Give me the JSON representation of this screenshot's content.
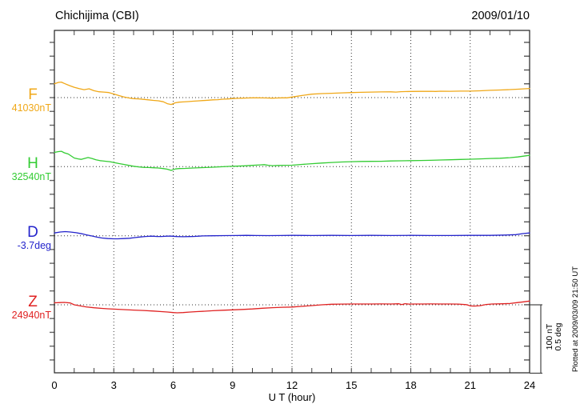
{
  "header": {
    "station_title": "Chichijima (CBI)",
    "date": "2009/01/10"
  },
  "x_axis": {
    "label": "U T (hour)",
    "min": 0,
    "max": 24,
    "minor_step_hours": 1,
    "grid_hours": [
      3,
      6,
      9,
      12,
      15,
      18,
      21
    ],
    "tick_labels": [
      "0",
      "3",
      "6",
      "9",
      "12",
      "15",
      "18",
      "21",
      "24"
    ]
  },
  "scale_bar": {
    "line1": "100 nT",
    "line2": "0.5 deg"
  },
  "footer_note": "Plotted at 2009/03/09 21:50 UT",
  "chart_data": {
    "type": "line",
    "title": "Chichijima (CBI) daily magnetogram",
    "subtitle": "2009/01/10",
    "xlabel": "U T (hour)",
    "xlim": [
      0,
      24
    ],
    "grid": "dotted baselines per trace, dotted verticals every 3 hours",
    "legend_position": "left margin, one label per trace",
    "scale": {
      "nT_per_division": 100,
      "deg_per_division": 0.5,
      "minor_ticks_per_division": 5
    },
    "series": [
      {
        "name": "F",
        "baseline_label": "41030nT",
        "baseline_value": 41030,
        "unit": "nT",
        "color": "#f0a818",
        "points": [
          [
            0,
            20
          ],
          [
            0.2,
            22
          ],
          [
            0.35,
            22.5
          ],
          [
            0.5,
            20.5
          ],
          [
            0.75,
            17.5
          ],
          [
            1,
            15
          ],
          [
            1.25,
            13
          ],
          [
            1.5,
            11.5
          ],
          [
            1.75,
            12.7
          ],
          [
            2,
            10
          ],
          [
            2.25,
            8.5
          ],
          [
            2.5,
            8
          ],
          [
            2.75,
            7.3
          ],
          [
            3,
            5.2
          ],
          [
            3.25,
            3
          ],
          [
            3.5,
            1
          ],
          [
            3.75,
            -0.5
          ],
          [
            4,
            -1.5
          ],
          [
            4.25,
            -1.8
          ],
          [
            4.5,
            -2.5
          ],
          [
            4.75,
            -3.2
          ],
          [
            5,
            -4
          ],
          [
            5.25,
            -4.6
          ],
          [
            5.5,
            -6
          ],
          [
            5.7,
            -8.8
          ],
          [
            5.9,
            -10
          ],
          [
            6.1,
            -7.5
          ],
          [
            6.3,
            -6.6
          ],
          [
            6.5,
            -6.2
          ],
          [
            6.75,
            -5.8
          ],
          [
            7,
            -5.2
          ],
          [
            7.25,
            -4.8
          ],
          [
            7.5,
            -4.3
          ],
          [
            7.75,
            -3.8
          ],
          [
            8,
            -3.3
          ],
          [
            8.25,
            -3
          ],
          [
            8.5,
            -2.3
          ],
          [
            8.75,
            -2
          ],
          [
            9,
            -1.4
          ],
          [
            9.25,
            -1
          ],
          [
            9.5,
            -0.8
          ],
          [
            9.75,
            -0.6
          ],
          [
            10,
            -0.4
          ],
          [
            10.25,
            -0.3
          ],
          [
            10.5,
            -0.5
          ],
          [
            10.75,
            -0.6
          ],
          [
            11,
            -0.8
          ],
          [
            11.25,
            -0.6
          ],
          [
            11.5,
            -0.4
          ],
          [
            11.75,
            -0.3
          ],
          [
            12,
            0.8
          ],
          [
            12.5,
            3
          ],
          [
            13,
            5
          ],
          [
            13.5,
            5.8
          ],
          [
            14,
            6.3
          ],
          [
            14.5,
            6.8
          ],
          [
            15,
            7.3
          ],
          [
            15.5,
            7.7
          ],
          [
            16,
            8
          ],
          [
            16.5,
            8.2
          ],
          [
            17,
            8.4
          ],
          [
            17.25,
            8
          ],
          [
            17.5,
            8.6
          ],
          [
            18,
            8.9
          ],
          [
            18.5,
            9
          ],
          [
            19,
            9.2
          ],
          [
            19.25,
            8.9
          ],
          [
            19.5,
            9.3
          ],
          [
            20,
            9.2
          ],
          [
            20.5,
            9.4
          ],
          [
            21,
            9.4
          ],
          [
            21.5,
            9.9
          ],
          [
            22,
            10.5
          ],
          [
            22.5,
            11
          ],
          [
            23,
            11.6
          ],
          [
            23.5,
            12.3
          ],
          [
            24,
            13.2
          ]
        ]
      },
      {
        "name": "H",
        "baseline_label": "32540nT",
        "baseline_value": 32540,
        "unit": "nT",
        "color": "#33cc33",
        "points": [
          [
            0,
            20.6
          ],
          [
            0.2,
            21.8
          ],
          [
            0.35,
            22.3
          ],
          [
            0.5,
            20
          ],
          [
            0.7,
            18.3
          ],
          [
            1,
            12.5
          ],
          [
            1.2,
            11.2
          ],
          [
            1.35,
            10.6
          ],
          [
            1.55,
            12
          ],
          [
            1.7,
            13.2
          ],
          [
            1.9,
            11.8
          ],
          [
            2.1,
            10
          ],
          [
            2.3,
            8.7
          ],
          [
            2.6,
            7.8
          ],
          [
            2.8,
            7.2
          ],
          [
            3,
            6
          ],
          [
            3.25,
            4.5
          ],
          [
            3.5,
            3.2
          ],
          [
            3.75,
            1.8
          ],
          [
            4,
            0.6
          ],
          [
            4.25,
            -0.3
          ],
          [
            4.5,
            -1
          ],
          [
            4.75,
            -1.3
          ],
          [
            5,
            -1.6
          ],
          [
            5.25,
            -2
          ],
          [
            5.5,
            -2.8
          ],
          [
            5.7,
            -3.7
          ],
          [
            5.9,
            -5.4
          ],
          [
            6.1,
            -3.4
          ],
          [
            6.3,
            -2.8
          ],
          [
            6.6,
            -2.5
          ],
          [
            7,
            -2
          ],
          [
            7.5,
            -1.4
          ],
          [
            8,
            -0.8
          ],
          [
            8.4,
            -0.2
          ],
          [
            8.8,
            0.3
          ],
          [
            9.2,
            0.7
          ],
          [
            9.6,
            1.2
          ],
          [
            10,
            1.8
          ],
          [
            10.4,
            2.6
          ],
          [
            10.6,
            2.9
          ],
          [
            10.8,
            2
          ],
          [
            11,
            1.4
          ],
          [
            11.3,
            1.7
          ],
          [
            11.6,
            2
          ],
          [
            12,
            2.1
          ],
          [
            12.5,
            3.2
          ],
          [
            13,
            4.3
          ],
          [
            13.5,
            5.2
          ],
          [
            14,
            6
          ],
          [
            14.5,
            6.7
          ],
          [
            15,
            7.2
          ],
          [
            15.5,
            7.5
          ],
          [
            16,
            7.7
          ],
          [
            16.5,
            7.8
          ],
          [
            17,
            8.2
          ],
          [
            17.5,
            8.5
          ],
          [
            18,
            8.7
          ],
          [
            18.5,
            8.9
          ],
          [
            19,
            9.2
          ],
          [
            19.5,
            9.6
          ],
          [
            20,
            10
          ],
          [
            20.5,
            10.4
          ],
          [
            21,
            10.8
          ],
          [
            21.5,
            11.2
          ],
          [
            22,
            11.8
          ],
          [
            22.5,
            12.2
          ],
          [
            23,
            13
          ],
          [
            23.4,
            14
          ],
          [
            23.8,
            15.6
          ],
          [
            24,
            16.4
          ]
        ]
      },
      {
        "name": "D",
        "baseline_label": "-3.7deg",
        "baseline_value": -3.7,
        "unit": "deg",
        "color": "#2424cc",
        "points": [
          [
            0,
            0.02
          ],
          [
            0.3,
            0.027
          ],
          [
            0.55,
            0.03
          ],
          [
            0.8,
            0.027
          ],
          [
            1.1,
            0.022
          ],
          [
            1.4,
            0.014
          ],
          [
            1.6,
            0.007
          ],
          [
            1.9,
            -0.002
          ],
          [
            2.15,
            -0.01
          ],
          [
            2.4,
            -0.016
          ],
          [
            2.7,
            -0.02
          ],
          [
            3,
            -0.022
          ],
          [
            3.2,
            -0.022
          ],
          [
            3.5,
            -0.02
          ],
          [
            3.8,
            -0.018
          ],
          [
            4.1,
            -0.013
          ],
          [
            4.3,
            -0.009
          ],
          [
            4.6,
            -0.005
          ],
          [
            4.9,
            -0.003
          ],
          [
            5.2,
            -0.005
          ],
          [
            5.4,
            -0.005
          ],
          [
            5.7,
            -0.003
          ],
          [
            5.9,
            -0.003
          ],
          [
            6.2,
            -0.006
          ],
          [
            6.5,
            -0.007
          ],
          [
            6.8,
            -0.006
          ],
          [
            7,
            -0.005
          ],
          [
            7.3,
            -0.003
          ],
          [
            7.5,
            -0.001
          ],
          [
            8,
            0
          ],
          [
            8.6,
            0.001
          ],
          [
            9.2,
            0.002
          ],
          [
            9.7,
            0.003
          ],
          [
            10.2,
            0.002
          ],
          [
            10.8,
            0.001
          ],
          [
            11.4,
            0.002
          ],
          [
            12,
            0.003
          ],
          [
            13,
            0.002
          ],
          [
            14,
            0.003
          ],
          [
            15,
            0.002
          ],
          [
            16,
            0.003
          ],
          [
            17,
            0.002
          ],
          [
            18,
            0.003
          ],
          [
            19,
            0.002
          ],
          [
            20,
            0.002
          ],
          [
            21,
            0.003
          ],
          [
            22,
            0.003
          ],
          [
            22.8,
            0.005
          ],
          [
            23.3,
            0.008
          ],
          [
            23.7,
            0.016
          ],
          [
            24,
            0.02
          ]
        ]
      },
      {
        "name": "Z",
        "baseline_label": "24940nT",
        "baseline_value": 24940,
        "unit": "nT",
        "color": "#e02222",
        "points": [
          [
            0,
            2.9
          ],
          [
            0.3,
            3.3
          ],
          [
            0.5,
            3.5
          ],
          [
            0.8,
            2.7
          ],
          [
            1,
            0
          ],
          [
            1.2,
            -1
          ],
          [
            1.6,
            -3
          ],
          [
            2,
            -4.3
          ],
          [
            2.4,
            -5.2
          ],
          [
            2.7,
            -5.8
          ],
          [
            3,
            -6.3
          ],
          [
            3.5,
            -7
          ],
          [
            4,
            -7.7
          ],
          [
            4.5,
            -8.2
          ],
          [
            5,
            -9
          ],
          [
            5.4,
            -9.8
          ],
          [
            5.7,
            -10.4
          ],
          [
            6,
            -11.2
          ],
          [
            6.2,
            -11.6
          ],
          [
            6.5,
            -11.2
          ],
          [
            6.8,
            -10.6
          ],
          [
            7.2,
            -9.9
          ],
          [
            7.6,
            -9.3
          ],
          [
            8,
            -8.6
          ],
          [
            8.5,
            -7.9
          ],
          [
            9,
            -7.3
          ],
          [
            9.5,
            -6.7
          ],
          [
            10,
            -6
          ],
          [
            10.5,
            -5
          ],
          [
            11,
            -4.2
          ],
          [
            11.5,
            -3.6
          ],
          [
            12,
            -3.3
          ],
          [
            12.5,
            -2.2
          ],
          [
            13,
            -1.2
          ],
          [
            13.5,
            0
          ],
          [
            14,
            0.8
          ],
          [
            14.5,
            1
          ],
          [
            15,
            1.2
          ],
          [
            15.5,
            1.2
          ],
          [
            16,
            1.2
          ],
          [
            16.5,
            1.3
          ],
          [
            17,
            1.2
          ],
          [
            17.4,
            1.5
          ],
          [
            17.55,
            0.3
          ],
          [
            17.7,
            1.6
          ],
          [
            17.9,
            1
          ],
          [
            18.2,
            1.2
          ],
          [
            18.6,
            1.2
          ],
          [
            19,
            1.3
          ],
          [
            19.5,
            1.2
          ],
          [
            20,
            1.2
          ],
          [
            20.4,
            1
          ],
          [
            20.8,
            0.2
          ],
          [
            21,
            -1.5
          ],
          [
            21.2,
            -1.8
          ],
          [
            21.5,
            -1.3
          ],
          [
            21.8,
            0.5
          ],
          [
            22.1,
            1.2
          ],
          [
            22.5,
            1.4
          ],
          [
            23,
            1.8
          ],
          [
            23.4,
            3.3
          ],
          [
            23.7,
            4.3
          ],
          [
            24,
            5.4
          ]
        ]
      }
    ]
  },
  "colors": {
    "frame": "#222222",
    "grid": "#333333",
    "tick": "#666666",
    "scale_bar": "#444444",
    "text": "#000000"
  }
}
